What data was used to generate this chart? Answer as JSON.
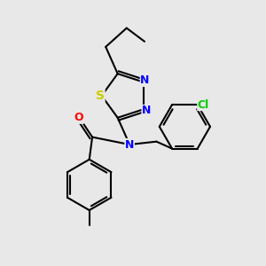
{
  "bg_color": "#e8e8e8",
  "bond_color": "#000000",
  "bond_width": 1.5,
  "dbo": 0.018,
  "atom_colors": {
    "S": "#cccc00",
    "N": "#0000ff",
    "O": "#ff0000",
    "Cl": "#00cc00",
    "C": "#000000"
  },
  "font_size": 9,
  "fig_size": [
    3.0,
    3.0
  ],
  "dpi": 100,
  "xlim": [
    -0.2,
    1.55
  ],
  "ylim": [
    -0.15,
    1.45
  ]
}
